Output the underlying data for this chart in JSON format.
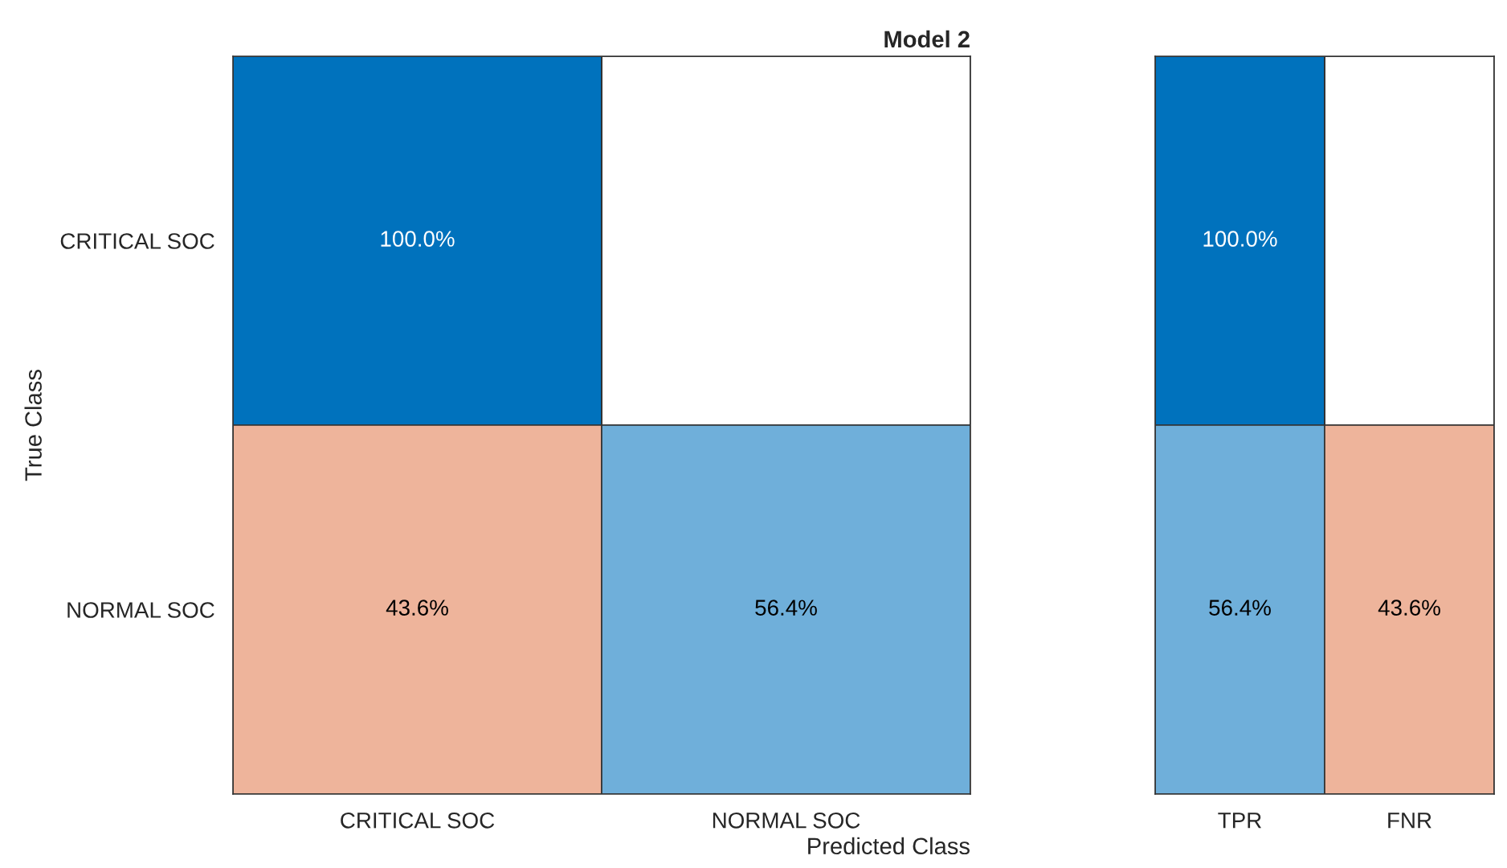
{
  "chart_data": [
    {
      "type": "heatmap",
      "title": "Model 2",
      "xlabel": "Predicted Class",
      "ylabel": "True Class",
      "categories": [
        "CRITICAL SOC",
        "NORMAL SOC"
      ],
      "y_categories": [
        "CRITICAL SOC",
        "NORMAL SOC"
      ],
      "cells": [
        [
          100.0,
          null
        ],
        [
          43.6,
          56.4
        ]
      ],
      "cell_labels": [
        [
          "100.0%",
          null
        ],
        [
          "43.6%",
          "56.4%"
        ]
      ],
      "colors": [
        [
          "#0072bd",
          null
        ],
        [
          "#d95319",
          "#0072bd"
        ]
      ]
    },
    {
      "type": "heatmap",
      "categories": [
        "TPR",
        "FNR"
      ],
      "y_categories": [
        null,
        null
      ],
      "tick_labels": "x",
      "cells": [
        [
          100.0,
          null
        ],
        [
          56.4,
          43.6
        ]
      ],
      "cell_labels": [
        [
          "100.0%",
          null
        ],
        [
          "56.4%",
          "43.6%"
        ]
      ],
      "colors": [
        [
          "#0072bd",
          null
        ],
        [
          "#0072bd",
          "#d95319"
        ]
      ]
    }
  ]
}
